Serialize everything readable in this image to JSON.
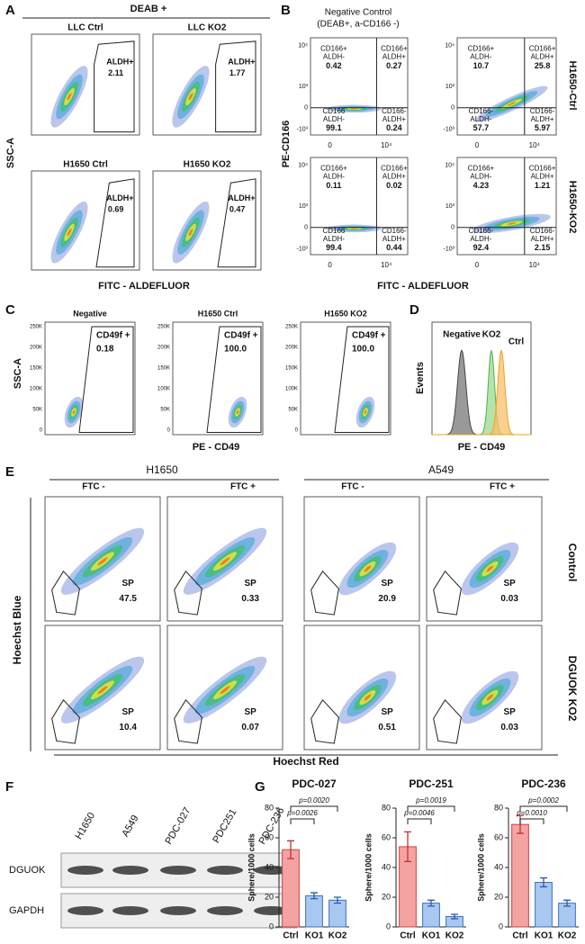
{
  "panels": {
    "A": {
      "letter": "A",
      "title": "DEAB +",
      "y_label": "SSC-A",
      "x_label": "FITC - ALDEFLUOR",
      "plots": [
        {
          "title": "LLC Ctrl",
          "gate": "ALDH+",
          "value": "2.11"
        },
        {
          "title": "LLC KO2",
          "gate": "ALDH+",
          "value": "1.77"
        },
        {
          "title": "H1650 Ctrl",
          "gate": "ALDH+",
          "value": "0.69"
        },
        {
          "title": "H1650 KO2",
          "gate": "ALDH+",
          "value": "0.47"
        }
      ]
    },
    "B": {
      "letter": "B",
      "title_lines": [
        "Negative Control",
        "(DEAB+, a-CD166 -)"
      ],
      "y_label": "PE-CD166",
      "x_label": "FITC - ALDEFLUOR",
      "row_labels": [
        "H1650-Ctrl",
        "H1650-KO2"
      ],
      "xticks": [
        "0",
        "10⁴"
      ],
      "yticks": [
        "10⁴",
        "10³",
        "0",
        "-10³"
      ],
      "plots": [
        {
          "quadrants": [
            {
              "lines": [
                "CD166+",
                "ALDH-"
              ],
              "value": "0.42"
            },
            {
              "lines": [
                "CD166+",
                "ALDH+"
              ],
              "value": "0.27"
            },
            {
              "lines": [
                "CD166",
                "ALDH-"
              ],
              "value": "99.1"
            },
            {
              "lines": [
                "CD166-",
                "ALDH+"
              ],
              "value": "0.24"
            }
          ]
        },
        {
          "quadrants": [
            {
              "lines": [
                "CD166+",
                "ALDH-"
              ],
              "value": "10.7"
            },
            {
              "lines": [
                "CD166+",
                "ALDH+"
              ],
              "value": "25.8"
            },
            {
              "lines": [
                "CD166-",
                "ALDH-"
              ],
              "value": "57.7"
            },
            {
              "lines": [
                "CD166-",
                "ALDH+"
              ],
              "value": "5.97"
            }
          ]
        },
        {
          "quadrants": [
            {
              "lines": [
                "CD166+",
                "ALDH-"
              ],
              "value": "0.11"
            },
            {
              "lines": [
                "CD166+",
                "ALDH+"
              ],
              "value": "0.02"
            },
            {
              "lines": [
                "CD166",
                "ALDH-"
              ],
              "value": "99.4"
            },
            {
              "lines": [
                "CD166-",
                "ALDH+"
              ],
              "value": "0.44"
            }
          ]
        },
        {
          "quadrants": [
            {
              "lines": [
                "CD166+",
                "ALDH-"
              ],
              "value": "4.23"
            },
            {
              "lines": [
                "CD166+",
                "ALDH+"
              ],
              "value": "1.21"
            },
            {
              "lines": [
                "CD166-",
                "ALDH-"
              ],
              "value": "92.4"
            },
            {
              "lines": [
                "CD166-",
                "ALDH+"
              ],
              "value": "2.15"
            }
          ]
        }
      ]
    },
    "C": {
      "letter": "C",
      "y_label": "SSC-A",
      "x_label": "PE - CD49",
      "yticks": [
        "250K",
        "200K",
        "150K",
        "100K",
        "50K",
        "0"
      ],
      "plots": [
        {
          "title": "Negative",
          "gate": "CD49f +",
          "value": "0.18"
        },
        {
          "title": "H1650 Ctrl",
          "gate": "CD49f +",
          "value": "100.0"
        },
        {
          "title": "H1650 KO2",
          "gate": "CD49f +",
          "value": "100.0"
        }
      ]
    },
    "D": {
      "letter": "D",
      "y_label": "Events",
      "x_label": "PE - CD49",
      "curves": [
        {
          "name": "Negative",
          "color": "#555555"
        },
        {
          "name": "KO2",
          "color": "#4caf50"
        },
        {
          "name": "Ctrl",
          "color": "#f0a020"
        }
      ]
    },
    "E": {
      "letter": "E",
      "groups": [
        "H1650",
        "A549"
      ],
      "column_labels": [
        "FTC -",
        "FTC +",
        "FTC -",
        "FTC +"
      ],
      "row_labels": [
        "Control",
        "DGUOK KO2"
      ],
      "y_label": "Hoechst Blue",
      "x_label": "Hoechst Red",
      "plots": [
        {
          "gate": "SP",
          "value": "47.5"
        },
        {
          "gate": "SP",
          "value": "0.33"
        },
        {
          "gate": "SP",
          "value": "20.9"
        },
        {
          "gate": "SP",
          "value": "0.03"
        },
        {
          "gate": "SP",
          "value": "10.4"
        },
        {
          "gate": "SP",
          "value": "0.07"
        },
        {
          "gate": "SP",
          "value": "0.51"
        },
        {
          "gate": "SP",
          "value": "0.03"
        }
      ]
    },
    "F": {
      "letter": "F",
      "columns": [
        "H1650",
        "A549",
        "PDC-027",
        "PDC251",
        "PDC-236"
      ],
      "rows": [
        "DGUOK",
        "GAPDH"
      ]
    },
    "G": {
      "letter": "G"
    }
  },
  "chart_data": [
    {
      "type": "bar",
      "title": "PDC-027",
      "y_label": "Sphere/1000 cells",
      "categories": [
        "Ctrl",
        "KO1",
        "KO2"
      ],
      "values": [
        52,
        21,
        18
      ],
      "errors": [
        6,
        2,
        2
      ],
      "colors": [
        "#f4a3a3",
        "#a9c8f0",
        "#a9c8f0"
      ],
      "ylim": [
        0,
        80
      ],
      "yticks": [
        0,
        20,
        40,
        60,
        80
      ],
      "p_values": [
        "p=0.0020",
        "p=0.0026"
      ]
    },
    {
      "type": "bar",
      "title": "PDC-251",
      "y_label": "Sphere/1000 cells",
      "categories": [
        "Ctrl",
        "KO1",
        "KO2"
      ],
      "values": [
        54,
        16,
        7
      ],
      "errors": [
        10,
        2,
        1.5
      ],
      "colors": [
        "#f4a3a3",
        "#a9c8f0",
        "#a9c8f0"
      ],
      "ylim": [
        0,
        80
      ],
      "yticks": [
        0,
        20,
        40,
        60,
        80
      ],
      "p_values": [
        "p=0.0019",
        "p=0.0046"
      ]
    },
    {
      "type": "bar",
      "title": "PDC-236",
      "y_label": "Sphere/1000 cells",
      "categories": [
        "Ctrl",
        "KO1",
        "KO2"
      ],
      "values": [
        69,
        30,
        16
      ],
      "errors": [
        6,
        3,
        2
      ],
      "colors": [
        "#f4a3a3",
        "#a9c8f0",
        "#a9c8f0"
      ],
      "ylim": [
        0,
        80
      ],
      "yticks": [
        0,
        20,
        40,
        60,
        80
      ],
      "p_values": [
        "p=0.0002",
        "p=0.0010"
      ]
    }
  ]
}
